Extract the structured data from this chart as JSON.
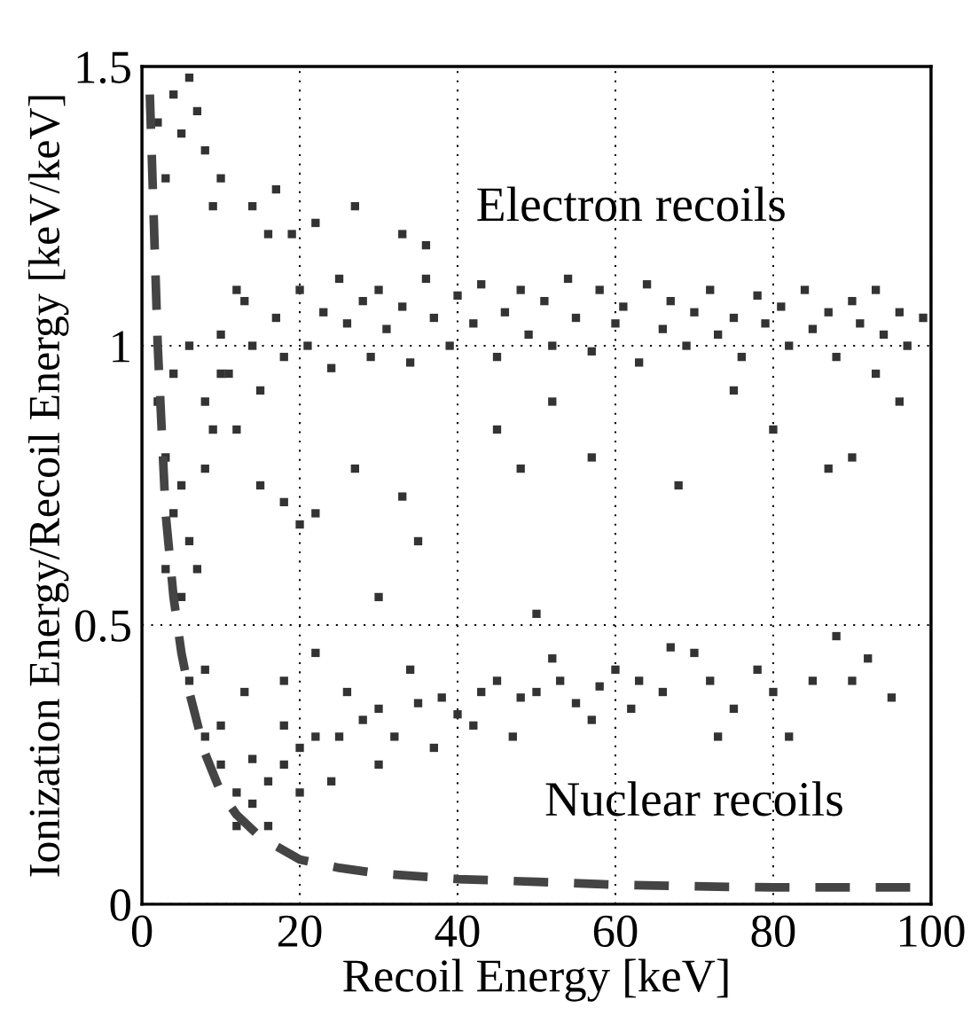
{
  "chart_data": {
    "type": "scatter",
    "xlabel": "Recoil Energy [keV]",
    "ylabel": "Ionization Energy/Recoil Energy [keV/keV]",
    "xlim": [
      0,
      100
    ],
    "ylim": [
      0,
      1.5
    ],
    "xticks": [
      0,
      20,
      40,
      60,
      80,
      100
    ],
    "yticks": [
      0,
      0.5,
      1,
      1.5
    ],
    "grid": true,
    "annotations": [
      "Electron recoils",
      "Nuclear recoils"
    ],
    "series": [
      {
        "marker": "square",
        "color": "#333333",
        "x": [
          2,
          3,
          4,
          5,
          6,
          7,
          8,
          9,
          10,
          12,
          14,
          16,
          17,
          19,
          22,
          27,
          33,
          36,
          2,
          3,
          4,
          5,
          6,
          7,
          8,
          9,
          10,
          3,
          5,
          4,
          6,
          8,
          12,
          15,
          18,
          20,
          22,
          27,
          33,
          35,
          30,
          45,
          48,
          50,
          52,
          57,
          68,
          75,
          80,
          87,
          90,
          93,
          96,
          10,
          11,
          13,
          14,
          15,
          17,
          18,
          20,
          21,
          23,
          24,
          25,
          26,
          28,
          29,
          30,
          31,
          33,
          34,
          36,
          37,
          39,
          40,
          42,
          43,
          45,
          46,
          48,
          49,
          51,
          52,
          54,
          55,
          57,
          58,
          60,
          61,
          63,
          64,
          66,
          67,
          69,
          70,
          72,
          73,
          75,
          76,
          78,
          79,
          81,
          82,
          84,
          85,
          87,
          88,
          90,
          91,
          93,
          94,
          96,
          97,
          99
        ],
        "values": [
          1.4,
          1.3,
          1.45,
          1.38,
          1.48,
          1.42,
          1.35,
          1.25,
          1.3,
          1.1,
          1.25,
          1.2,
          1.28,
          1.2,
          1.22,
          1.25,
          1.2,
          1.18,
          0.9,
          0.8,
          0.7,
          0.75,
          0.65,
          0.6,
          0.9,
          0.85,
          0.95,
          0.6,
          0.55,
          0.95,
          1.0,
          0.78,
          0.85,
          0.75,
          0.72,
          0.68,
          0.7,
          0.78,
          0.73,
          0.65,
          0.55,
          0.85,
          0.78,
          0.52,
          0.9,
          0.8,
          0.75,
          0.92,
          0.85,
          0.78,
          0.8,
          0.95,
          0.9,
          1.02,
          0.95,
          1.08,
          1.0,
          0.92,
          1.05,
          0.98,
          1.1,
          1.0,
          1.06,
          0.96,
          1.12,
          1.04,
          1.08,
          0.98,
          1.1,
          1.03,
          1.07,
          0.97,
          1.12,
          1.05,
          1.0,
          1.09,
          1.04,
          1.11,
          0.98,
          1.06,
          1.1,
          1.02,
          1.08,
          1.0,
          1.12,
          1.05,
          0.99,
          1.1,
          1.04,
          1.07,
          0.97,
          1.11,
          1.03,
          1.08,
          1.0,
          1.06,
          1.1,
          1.02,
          1.05,
          0.98,
          1.09,
          1.04,
          1.07,
          1.0,
          1.1,
          1.03,
          1.06,
          0.98,
          1.08,
          1.04,
          1.1,
          1.02,
          1.06,
          1.0,
          1.05
        ]
      },
      {
        "marker": "square",
        "color": "#333333",
        "x": [
          6,
          8,
          10,
          12,
          14,
          16,
          18,
          20,
          22,
          25,
          28,
          30,
          32,
          35,
          38,
          40,
          43,
          45,
          48,
          50,
          53,
          55,
          58,
          60,
          63,
          66,
          70,
          72,
          75,
          78,
          80,
          82,
          88,
          90,
          92,
          95,
          12,
          14,
          16,
          18,
          20,
          24,
          26,
          30,
          34,
          37,
          42,
          47,
          52,
          57,
          62,
          67,
          73,
          85,
          10,
          8,
          13,
          22,
          18
        ],
        "values": [
          0.4,
          0.3,
          0.25,
          0.2,
          0.18,
          0.22,
          0.25,
          0.28,
          0.3,
          0.3,
          0.33,
          0.35,
          0.3,
          0.36,
          0.37,
          0.34,
          0.38,
          0.4,
          0.37,
          0.38,
          0.4,
          0.36,
          0.39,
          0.42,
          0.4,
          0.38,
          0.45,
          0.4,
          0.35,
          0.42,
          0.38,
          0.3,
          0.48,
          0.4,
          0.44,
          0.37,
          0.14,
          0.26,
          0.14,
          0.32,
          0.2,
          0.22,
          0.38,
          0.25,
          0.42,
          0.28,
          0.32,
          0.3,
          0.44,
          0.33,
          0.35,
          0.46,
          0.3,
          0.4,
          0.32,
          0.42,
          0.38,
          0.45,
          0.4
        ]
      },
      {
        "type": "line",
        "marker": "none",
        "line_style": "dashed",
        "color": "#444444",
        "x": [
          1,
          2,
          3,
          4,
          5,
          6,
          8,
          10,
          12,
          15,
          20,
          25,
          30,
          40,
          50,
          60,
          70,
          80,
          90,
          99
        ],
        "values": [
          1.45,
          1.0,
          0.7,
          0.55,
          0.45,
          0.38,
          0.27,
          0.2,
          0.16,
          0.12,
          0.08,
          0.065,
          0.055,
          0.045,
          0.04,
          0.035,
          0.032,
          0.03,
          0.03,
          0.03
        ]
      }
    ]
  }
}
